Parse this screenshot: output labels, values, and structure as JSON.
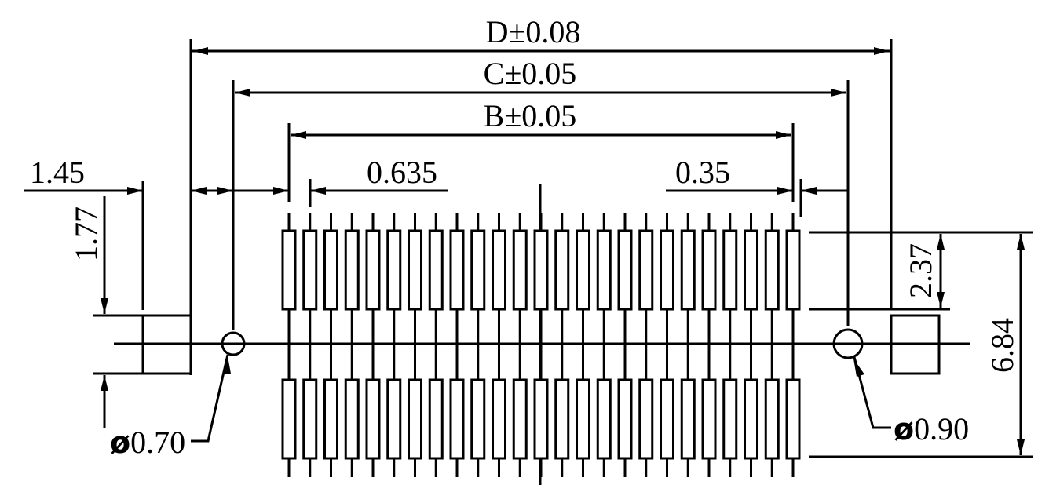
{
  "colors": {
    "line": "#000000",
    "background": "#ffffff"
  },
  "diagram": {
    "pin_pairs": 25,
    "dimensions": {
      "D": "D±0.08",
      "C": "C±0.05",
      "B": "B±0.05",
      "left_margin": "1.45",
      "pitch": "0.635",
      "right_gap": "0.35",
      "pad_height": "1.77",
      "row_height": "2.37",
      "overall_height": "6.84"
    },
    "holes": {
      "left": {
        "symbol": "ø",
        "value": "0.70"
      },
      "right": {
        "symbol": "ø",
        "value": "0.90"
      }
    }
  }
}
